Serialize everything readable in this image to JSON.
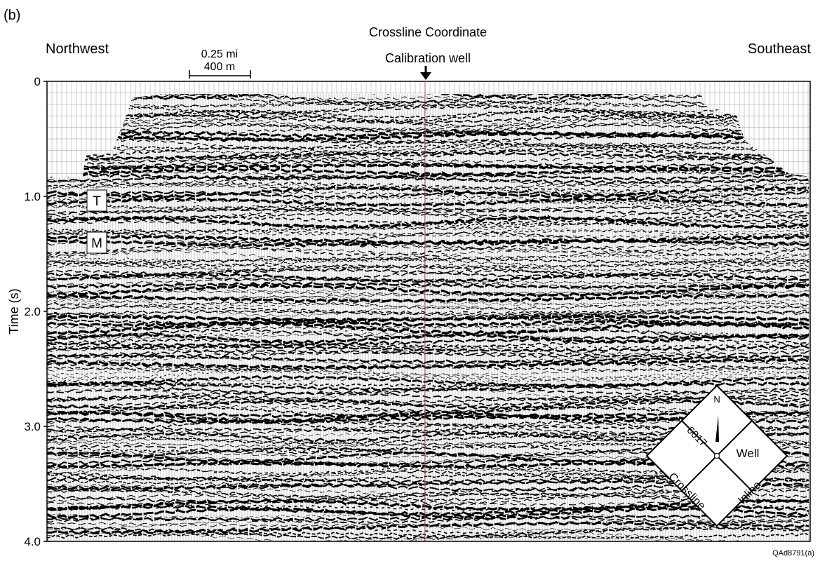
{
  "figure": {
    "panel": "(b)",
    "title": "Crossline Coordinate",
    "left_direction": "Northwest",
    "right_direction": "Southeast",
    "scale_bar": {
      "miles": "0.25 mi",
      "meters": "400 m"
    },
    "well_label": "Calibration well",
    "y_axis": {
      "label": "Time (s)",
      "lim": [
        0,
        4
      ],
      "ticks": [
        0,
        {
          "value": 1,
          "label": "1.0"
        },
        {
          "value": 2,
          "label": "2.0"
        },
        {
          "value": 3,
          "label": "3.0"
        },
        {
          "value": 4,
          "label": "4.0"
        }
      ]
    },
    "horizons": [
      "T",
      "M"
    ],
    "compass": {
      "north": "N",
      "line": "6017",
      "well": "Well",
      "crossline": "Crossline",
      "inline": "Inline"
    },
    "figure_id": "QAd8791(a)"
  }
}
